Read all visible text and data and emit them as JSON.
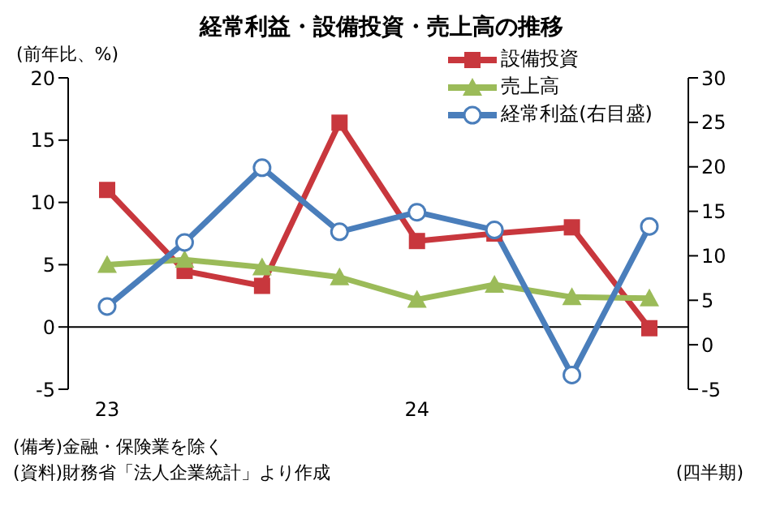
{
  "chart_data": {
    "type": "line",
    "title": "経常利益・設備投資・売上高の推移",
    "ylabel": "(前年比、%)",
    "xlabel": "(四半期)",
    "annotations": [
      "(備考)金融・保険業を除く",
      "(資料)財務省「法人企業統計」より作成"
    ],
    "categories": [
      "23",
      null,
      null,
      null,
      "24",
      null,
      null,
      null
    ],
    "series": [
      {
        "name": "設備投資",
        "color": "#c8373d",
        "marker": "square",
        "values": [
          11.0,
          4.5,
          3.3,
          16.4,
          6.9,
          7.5,
          8.0,
          -0.1
        ]
      },
      {
        "name": "売上高",
        "color": "#9bbb59",
        "marker": "triangle",
        "values": [
          5.0,
          5.4,
          4.8,
          4.0,
          2.2,
          3.4,
          2.4,
          2.3
        ]
      },
      {
        "name": "経常利益(右目盛)",
        "color": "#4a7ebb",
        "marker": "circle",
        "axis": "y2",
        "values": [
          4.3,
          11.5,
          19.9,
          12.7,
          14.9,
          12.9,
          -3.4,
          13.3
        ]
      }
    ],
    "ylim": [
      -5,
      20
    ],
    "yticks": [
      -5,
      0,
      5,
      10,
      15,
      20
    ],
    "y2lim": [
      -5,
      30
    ],
    "y2ticks": [
      -5,
      0,
      5,
      10,
      15,
      20,
      25,
      30
    ],
    "ref_lines": [
      {
        "axis": "y",
        "value": 0,
        "color": "#000000"
      }
    ],
    "legend": "top right",
    "line_style": "solid"
  }
}
